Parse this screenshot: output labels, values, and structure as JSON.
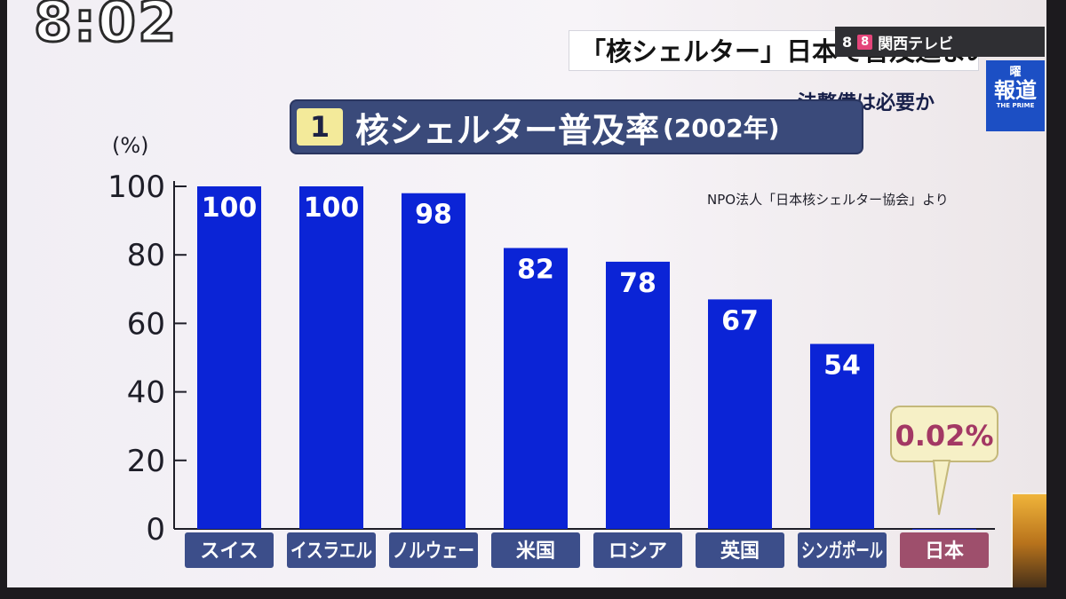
{
  "overlay": {
    "clock": "8:02",
    "topic": "「核シェルター」日本で普及進まぬ理由",
    "sub_topic": "法整備は必要か",
    "channel_number": "8",
    "channel_badge": "8",
    "channel_name": "関西テレビ",
    "show_logo_small": "曜",
    "show_logo_big": "報道",
    "show_logo_tiny": "THE PRIME"
  },
  "chart_data": {
    "type": "bar",
    "title_number": "1",
    "title": "核シェルター普及率",
    "title_year": "(2002年)",
    "unit_label": "(%)",
    "source": "NPO法人「日本核シェルター協会」より",
    "ylim": [
      0,
      100
    ],
    "yticks": [
      "0",
      "20",
      "40",
      "60",
      "80",
      "100"
    ],
    "categories": [
      "スイス",
      "イスラエル",
      "ノルウェー",
      "米国",
      "ロシア",
      "英国",
      "シンガポール",
      "日本"
    ],
    "values": [
      100,
      100,
      98,
      82,
      78,
      67,
      54,
      0.02
    ],
    "value_labels": [
      "100",
      "100",
      "98",
      "82",
      "78",
      "67",
      "54",
      "0.02%"
    ],
    "highlight_category": "日本",
    "colors": {
      "bar": "#0b24d6",
      "category_box": "#3c4e8a",
      "highlight_box": "#9e4f6c",
      "callout_fill": "#f6f0c6",
      "callout_text": "#a33864"
    }
  }
}
